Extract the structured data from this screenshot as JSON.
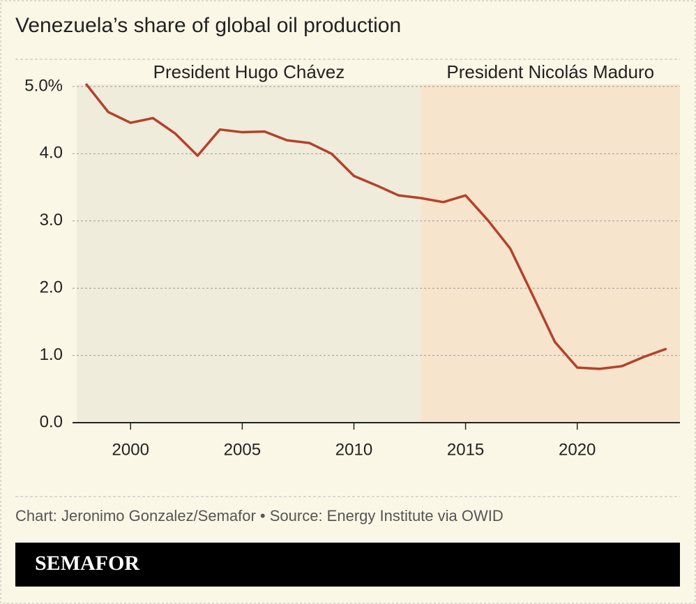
{
  "chart_data": {
    "type": "line",
    "title": "Venezuela’s share of global oil production",
    "x": [
      1998,
      1999,
      2000,
      2001,
      2002,
      2003,
      2004,
      2005,
      2006,
      2007,
      2008,
      2009,
      2010,
      2011,
      2012,
      2013,
      2014,
      2015,
      2016,
      2017,
      2018,
      2019,
      2020,
      2021,
      2022,
      2023,
      2024
    ],
    "values": [
      5.04,
      4.62,
      4.46,
      4.53,
      4.3,
      3.97,
      4.36,
      4.32,
      4.33,
      4.2,
      4.16,
      4.0,
      3.67,
      3.53,
      3.38,
      3.34,
      3.28,
      3.38,
      3.01,
      2.59,
      1.9,
      1.2,
      0.82,
      0.8,
      0.84,
      0.98,
      1.1
    ],
    "color": "#b5412a",
    "xlim": [
      1997.4,
      2024.6
    ],
    "xticks": [
      2000,
      2005,
      2010,
      2015,
      2020
    ],
    "ylim": [
      0,
      5
    ],
    "yticks": [
      {
        "value": 0,
        "label": "0.0"
      },
      {
        "value": 1,
        "label": "1.0"
      },
      {
        "value": 2,
        "label": "2.0"
      },
      {
        "value": 3,
        "label": "3.0"
      },
      {
        "value": 4,
        "label": "4.0"
      },
      {
        "value": 5,
        "label": "5.0%"
      }
    ],
    "grid": true,
    "regions": [
      {
        "label": "President Hugo Chávez",
        "start": 1997.6,
        "end": 2013,
        "color": "#f0ecdc"
      },
      {
        "label": "President Nicolás Maduro",
        "start": 2013,
        "end": 2024.6,
        "color": "#f7e4cd"
      }
    ],
    "source": "Chart: Jeronimo Gonzalez/Semafor • Source: Energy Institute via OWID",
    "logo": "SEMAFOR"
  }
}
